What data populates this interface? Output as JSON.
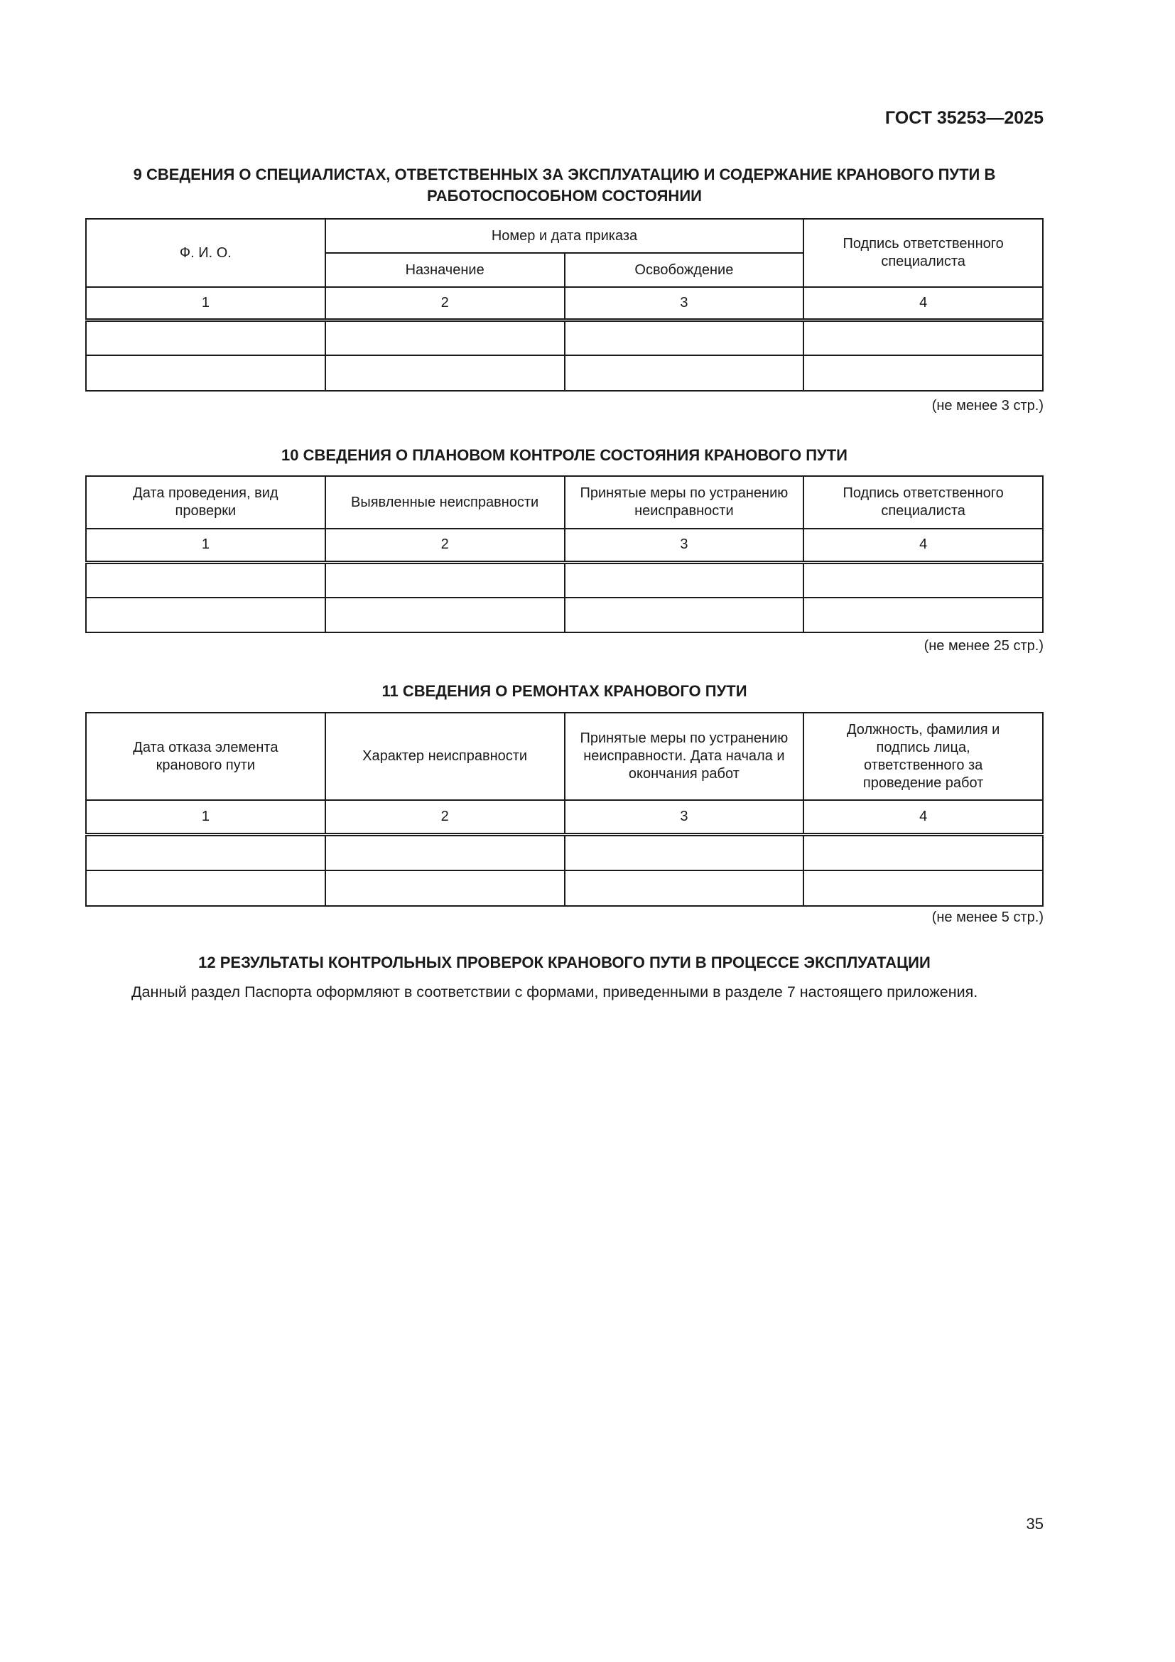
{
  "header": {
    "doc_code": "ГОСТ 35253—2025"
  },
  "section9": {
    "title": "9 СВЕДЕНИЯ О СПЕЦИАЛИСТАХ, ОТВЕТСТВЕННЫХ ЗА ЭКСПЛУАТАЦИЮ И СОДЕРЖАНИЕ КРАНОВОГО ПУТИ В РАБОТОСПОСОБНОМ СОСТОЯНИИ",
    "col_fio": "Ф. И. О.",
    "col_order": "Номер и дата приказа",
    "col_assign": "Назначение",
    "col_release": "Освобождение",
    "col_sign": "Подпись ответственного специалиста",
    "numbers": [
      "1",
      "2",
      "3",
      "4"
    ],
    "note": "(не менее 3 стр.)"
  },
  "section10": {
    "title": "10 СВЕДЕНИЯ О ПЛАНОВОМ КОНТРОЛЕ СОСТОЯНИЯ КРАНОВОГО ПУТИ",
    "headers": [
      "Дата проведения, вид проверки",
      "Выявленные неисправности",
      "Принятые меры по устранению неисправности",
      "Подпись ответственного специалиста"
    ],
    "numbers": [
      "1",
      "2",
      "3",
      "4"
    ],
    "note": "(не менее 25 стр.)"
  },
  "section11": {
    "title": "11 СВЕДЕНИЯ О РЕМОНТАХ КРАНОВОГО ПУТИ",
    "headers": [
      "Дата отказа элемента кранового пути",
      "Характер неисправности",
      "Принятые меры по устранению неисправности. Дата начала и окончания работ",
      "Должность, фамилия и подпись лица, ответственного за проведение работ"
    ],
    "numbers": [
      "1",
      "2",
      "3",
      "4"
    ],
    "note": "(не менее 5 стр.)"
  },
  "section12": {
    "title": "12 РЕЗУЛЬТАТЫ КОНТРОЛЬНЫХ ПРОВЕРОК КРАНОВОГО ПУТИ В ПРОЦЕССЕ ЭКСПЛУАТАЦИИ",
    "text": "Данный раздел Паспорта оформляют в соответствии с формами, приведенными в разделе 7 настоящего приложения."
  },
  "footer": {
    "page_number": "35"
  }
}
